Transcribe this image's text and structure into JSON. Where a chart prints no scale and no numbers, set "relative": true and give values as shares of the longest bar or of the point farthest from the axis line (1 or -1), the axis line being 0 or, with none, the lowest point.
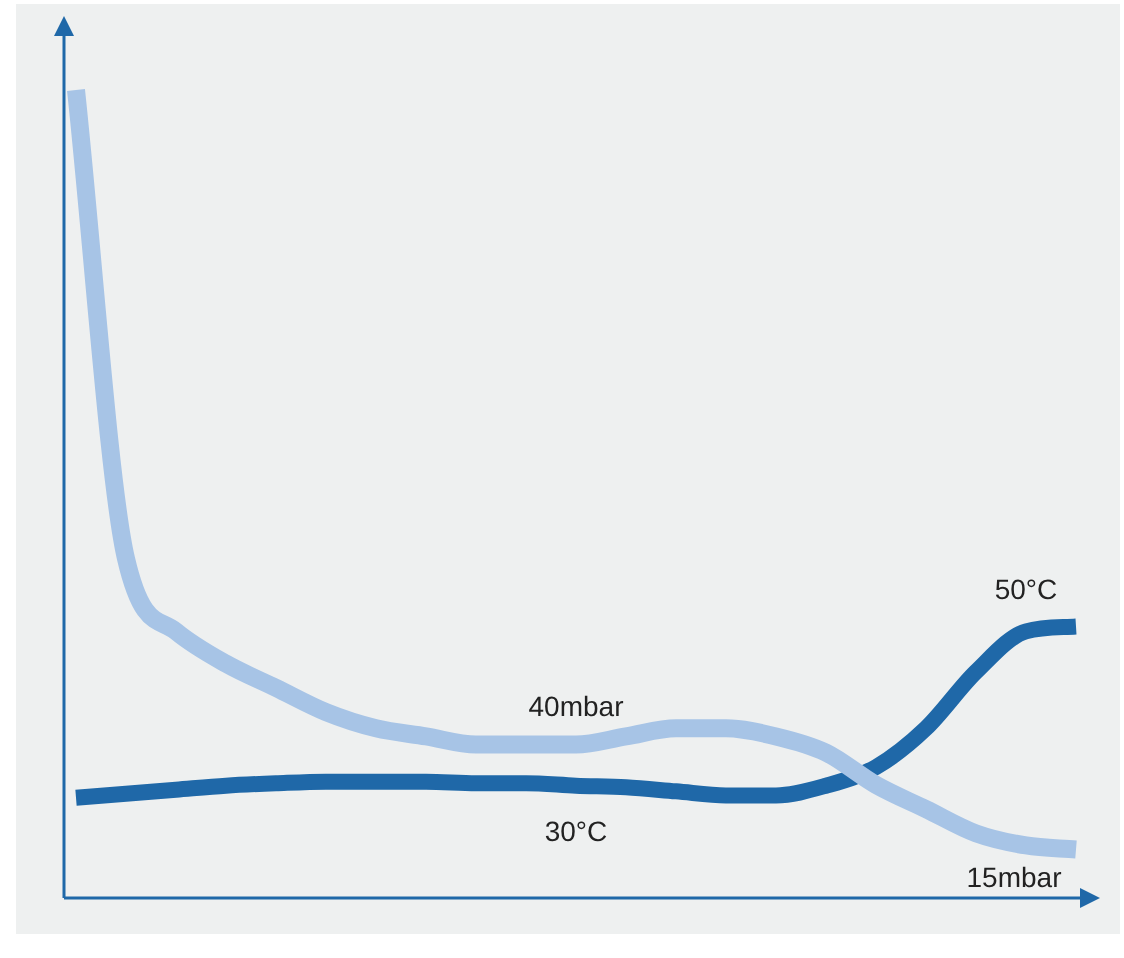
{
  "chart_data": {
    "type": "line",
    "relative": true,
    "categories": [
      null,
      null,
      null,
      null,
      null,
      null,
      null,
      null,
      null,
      null,
      null,
      null,
      null,
      null,
      null,
      null,
      null,
      null,
      null,
      null,
      null
    ],
    "series": [
      {
        "color": "#a7c4e6",
        "values": [
          1.0,
          0.42,
          0.33,
          0.29,
          0.26,
          0.23,
          0.21,
          0.2,
          0.19,
          0.19,
          0.19,
          0.2,
          0.21,
          0.21,
          0.2,
          0.18,
          0.14,
          0.11,
          0.08,
          0.065,
          0.06
        ]
      },
      {
        "color": "#1f68a8",
        "values": [
          0.124,
          0.129,
          0.134,
          0.139,
          0.142,
          0.144,
          0.144,
          0.144,
          0.142,
          0.142,
          0.139,
          0.137,
          0.132,
          0.127,
          0.127,
          0.139,
          0.162,
          0.21,
          0.28,
          0.33,
          0.336
        ]
      }
    ],
    "annotations": [
      "40mbar",
      "30°C",
      "50°C",
      "15mbar"
    ],
    "grid": false,
    "legend": false,
    "marker": "none",
    "line_style": "solid"
  }
}
